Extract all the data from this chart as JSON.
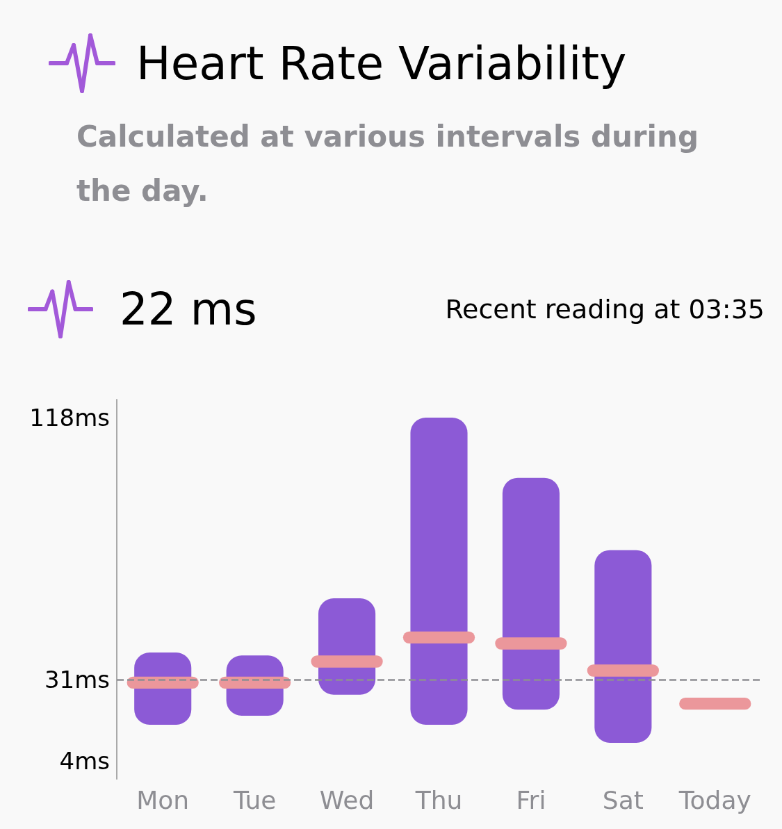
{
  "chart_data": {
    "type": "bar",
    "title": "Heart Rate Variability",
    "subtitle": "Calculated at various intervals during the day.",
    "annotations": [
      "22 ms",
      "Recent reading at 03:35"
    ],
    "categories": [
      "Mon",
      "Tue",
      "Wed",
      "Thu",
      "Fri",
      "Sat",
      "Today"
    ],
    "series": [
      {
        "color": "#8c5ad6",
        "base": [
          16,
          19,
          26,
          16,
          21,
          10,
          null
        ],
        "values": [
          24,
          20,
          32,
          102,
          77,
          64,
          null
        ]
      },
      {
        "color": "#eb979b",
        "base": [
          28,
          28,
          35,
          43,
          41,
          32,
          21
        ],
        "values": [
          4,
          4,
          4,
          4,
          4,
          4,
          4
        ]
      }
    ],
    "ylim": [
      -2,
      124
    ],
    "yticks": [
      {
        "value": 4,
        "label": "4ms"
      },
      {
        "value": 31,
        "label": "31ms"
      },
      {
        "value": 118,
        "label": "118ms"
      }
    ],
    "ref_lines": [
      {
        "axis": "y",
        "value": 31,
        "color": "#8e8e93",
        "line_style": "dashed"
      }
    ],
    "grid": false
  }
}
